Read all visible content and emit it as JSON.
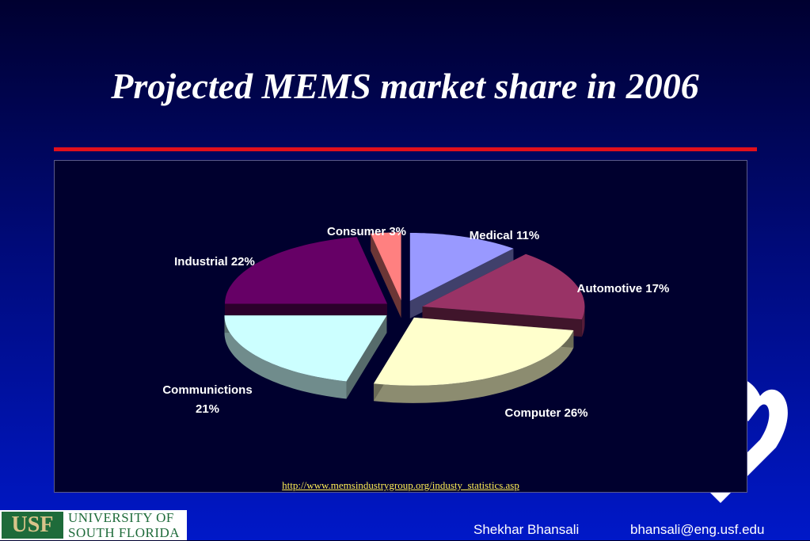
{
  "slide": {
    "title": "Projected MEMS market share in 2006",
    "source_url": "http://www.memsindustrygroup.org/industy_statistics.asp",
    "author": "Shekhar Bhansali",
    "email": "bhansali@eng.usf.edu"
  },
  "logo": {
    "mark": "USF",
    "name_line1": "UNIVERSITY OF",
    "name_line2": "SOUTH FLORIDA"
  },
  "colors": {
    "background_top": "#000030",
    "background_bottom": "#0018c8",
    "rule": "#e0101c",
    "link": "#ffee55",
    "usf_green": "#1e6b3a"
  },
  "chart_data": {
    "type": "pie",
    "style": "3d-exploded",
    "title": "",
    "start_angle_deg": 90,
    "direction": "clockwise",
    "categories": [
      "Medical",
      "Automotive",
      "Computer",
      "Communictions",
      "Industrial",
      "Consumer"
    ],
    "values": [
      11,
      17,
      26,
      21,
      22,
      3
    ],
    "unit": "%",
    "labels": [
      {
        "lines": [
          "Medical 11%"
        ]
      },
      {
        "lines": [
          "Automotive 17%"
        ]
      },
      {
        "lines": [
          "Computer 26%"
        ]
      },
      {
        "lines": [
          "Communictions",
          "21%"
        ]
      },
      {
        "lines": [
          "Industrial 22%"
        ]
      },
      {
        "lines": [
          "Consumer 3%"
        ]
      }
    ],
    "colors": [
      "#9999ff",
      "#993366",
      "#ffffcc",
      "#ccffff",
      "#660066",
      "#ff8080"
    ]
  }
}
